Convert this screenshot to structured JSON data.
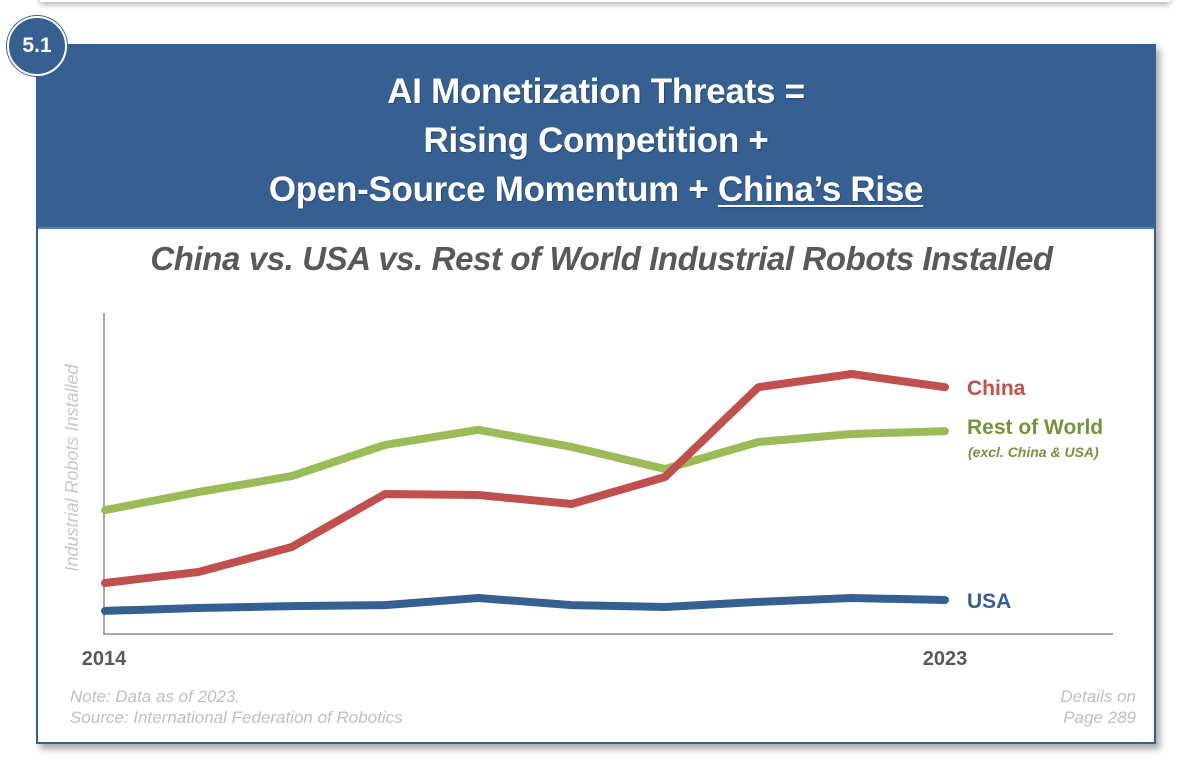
{
  "badge": "5.1",
  "header": {
    "line1": "AI Monetization Threats =",
    "line2": "Rising Competition +",
    "line3_prefix": "Open-Source Momentum + ",
    "line3_underlined": "China’s Rise"
  },
  "colors": {
    "header_blue": "#376092",
    "china": "#C0504D",
    "rest_of_world": "#9BBB59",
    "usa": "#376092",
    "label_rest_of_world": "#77933C"
  },
  "chart_data": {
    "type": "line",
    "title": "China vs. USA vs. Rest of World Industrial Robots Installed",
    "xlabel": "",
    "ylabel": "Industrial Robots Installed",
    "x": [
      2014,
      2015,
      2016,
      2017,
      2018,
      2019,
      2020,
      2021,
      2022,
      2023
    ],
    "x_tick_labels": [
      "2014",
      "2023"
    ],
    "y_units": "relative index (axis has no numeric ticks; 0 = baseline, 100 = axis top)",
    "ylim": [
      0,
      100
    ],
    "grid": false,
    "legend": "inline labels at right end of each line",
    "series": [
      {
        "name": "China",
        "label": "China",
        "values": [
          15.9,
          19.3,
          27.1,
          43.6,
          43.3,
          40.5,
          48.9,
          76.9,
          81.0,
          76.9
        ]
      },
      {
        "name": "Rest of World",
        "label": "Rest of World",
        "sublabel": "(excl. China & USA)",
        "values": [
          38.6,
          44.2,
          49.2,
          58.9,
          63.6,
          58.3,
          51.4,
          59.8,
          62.3,
          63.2
        ]
      },
      {
        "name": "USA",
        "label": "USA",
        "values": [
          7.2,
          8.1,
          8.7,
          9.0,
          11.2,
          9.0,
          8.4,
          10.0,
          11.2,
          10.6
        ]
      }
    ]
  },
  "footer": {
    "note": "Note: Data as of 2023.",
    "source": "Source: International Federation of Robotics",
    "details_line1": "Details on",
    "details_line2": "Page 289"
  }
}
